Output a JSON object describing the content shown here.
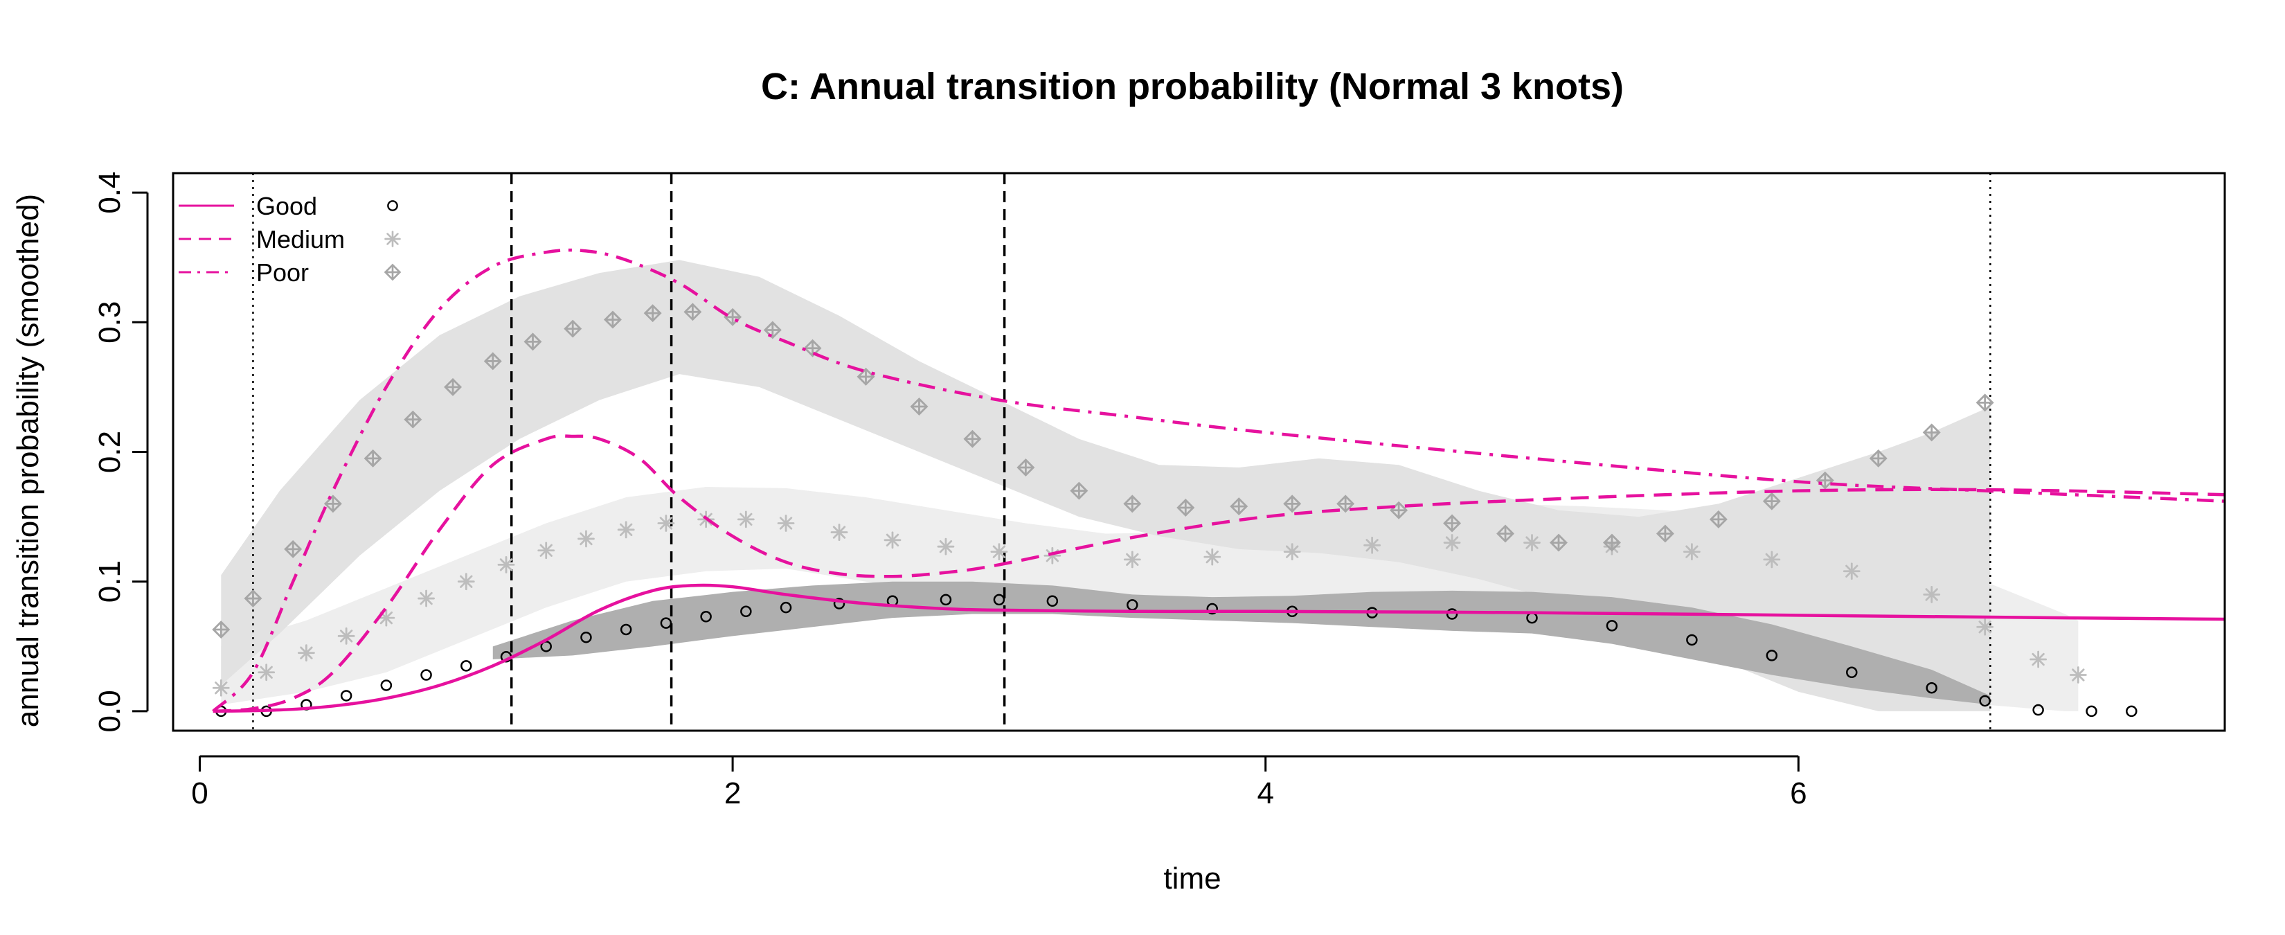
{
  "chart_data": {
    "type": "line",
    "title": "C: Annual transition probability (Normal 3 knots)",
    "xlabel": "time",
    "ylabel": "annual transition probability (smoothed)",
    "xlim": [
      -0.1,
      7.6
    ],
    "ylim": [
      -0.015,
      0.415
    ],
    "xticks": [
      0,
      2,
      4,
      6
    ],
    "yticks": [
      0.0,
      0.1,
      0.2,
      0.3,
      0.4
    ],
    "xtick_labels": [
      "0",
      "2",
      "4",
      "6"
    ],
    "ytick_labels": [
      "0.0",
      "0.1",
      "0.2",
      "0.3",
      "0.4"
    ],
    "grid": false,
    "legend_position": "top-left",
    "colors": {
      "model_line": "#E6119E",
      "good_points": "#000000",
      "medium_points": "#BDBDBD",
      "poor_points": "#A6A6A6",
      "good_band": "#AFAFAF",
      "medium_band": "#EEEEEE",
      "poor_band": "#E2E2E2"
    },
    "reference_lines": {
      "dotted": [
        0.2,
        6.72
      ],
      "dashed": [
        1.17,
        1.77,
        3.02
      ]
    },
    "series": [
      {
        "name": "Good",
        "kind": "model",
        "linestyle": "solid",
        "x": [
          0.05,
          0.3,
          0.5,
          0.7,
          0.9,
          1.1,
          1.3,
          1.5,
          1.7,
          1.85,
          2.0,
          2.2,
          2.5,
          2.8,
          3.0,
          3.5,
          4.0,
          5.0,
          6.0,
          7.0,
          7.6
        ],
        "y": [
          0.0,
          0.001,
          0.004,
          0.01,
          0.02,
          0.035,
          0.055,
          0.078,
          0.093,
          0.097,
          0.096,
          0.09,
          0.083,
          0.079,
          0.078,
          0.077,
          0.077,
          0.076,
          0.074,
          0.072,
          0.071
        ]
      },
      {
        "name": "Medium",
        "kind": "model",
        "linestyle": "dashed",
        "x": [
          0.05,
          0.2,
          0.35,
          0.5,
          0.7,
          0.9,
          1.1,
          1.3,
          1.4,
          1.5,
          1.65,
          1.8,
          2.0,
          2.2,
          2.4,
          2.6,
          2.8,
          3.0,
          3.5,
          4.0,
          4.5,
          5.0,
          5.5,
          6.0,
          6.5,
          7.0,
          7.6
        ],
        "y": [
          0.0,
          0.002,
          0.01,
          0.03,
          0.08,
          0.14,
          0.19,
          0.21,
          0.212,
          0.21,
          0.195,
          0.165,
          0.135,
          0.115,
          0.106,
          0.104,
          0.107,
          0.113,
          0.134,
          0.15,
          0.158,
          0.163,
          0.167,
          0.17,
          0.171,
          0.17,
          0.167
        ]
      },
      {
        "name": "Poor",
        "kind": "model",
        "linestyle": "dashdot",
        "x": [
          0.05,
          0.2,
          0.35,
          0.5,
          0.7,
          0.9,
          1.1,
          1.3,
          1.45,
          1.6,
          1.8,
          2.0,
          2.2,
          2.5,
          3.0,
          3.5,
          4.0,
          5.0,
          6.0,
          6.7,
          7.6
        ],
        "y": [
          0.0,
          0.03,
          0.1,
          0.17,
          0.25,
          0.31,
          0.343,
          0.354,
          0.355,
          0.348,
          0.33,
          0.303,
          0.285,
          0.262,
          0.24,
          0.227,
          0.215,
          0.195,
          0.177,
          0.17,
          0.162
        ]
      }
    ],
    "observed": [
      {
        "name": "Good",
        "marker": "circle",
        "x": [
          0.08,
          0.25,
          0.4,
          0.55,
          0.7,
          0.85,
          1.0,
          1.15,
          1.3,
          1.45,
          1.6,
          1.75,
          1.9,
          2.05,
          2.2,
          2.4,
          2.6,
          2.8,
          3.0,
          3.2,
          3.5,
          3.8,
          4.1,
          4.4,
          4.7,
          5.0,
          5.3,
          5.6,
          5.9,
          6.2,
          6.5,
          6.7,
          6.9,
          7.1,
          7.25
        ],
        "y": [
          0.0,
          0.0,
          0.005,
          0.012,
          0.02,
          0.028,
          0.035,
          0.042,
          0.05,
          0.057,
          0.063,
          0.068,
          0.073,
          0.077,
          0.08,
          0.083,
          0.085,
          0.086,
          0.086,
          0.085,
          0.082,
          0.079,
          0.077,
          0.076,
          0.075,
          0.072,
          0.066,
          0.055,
          0.043,
          0.03,
          0.018,
          0.008,
          0.001,
          0.0,
          0.0
        ]
      },
      {
        "name": "Medium",
        "marker": "asterisk",
        "x": [
          0.08,
          0.25,
          0.4,
          0.55,
          0.7,
          0.85,
          1.0,
          1.15,
          1.3,
          1.45,
          1.6,
          1.75,
          1.9,
          2.05,
          2.2,
          2.4,
          2.6,
          2.8,
          3.0,
          3.2,
          3.5,
          3.8,
          4.1,
          4.4,
          4.7,
          5.0,
          5.3,
          5.6,
          5.9,
          6.2,
          6.5,
          6.7,
          6.9,
          7.05
        ],
        "y": [
          0.018,
          0.03,
          0.045,
          0.058,
          0.072,
          0.087,
          0.1,
          0.113,
          0.124,
          0.133,
          0.14,
          0.145,
          0.148,
          0.148,
          0.145,
          0.138,
          0.132,
          0.127,
          0.123,
          0.12,
          0.117,
          0.119,
          0.123,
          0.128,
          0.13,
          0.13,
          0.127,
          0.123,
          0.117,
          0.108,
          0.09,
          0.065,
          0.04,
          0.028
        ]
      },
      {
        "name": "Poor",
        "marker": "diamond-plus",
        "x": [
          0.08,
          0.2,
          0.35,
          0.5,
          0.65,
          0.8,
          0.95,
          1.1,
          1.25,
          1.4,
          1.55,
          1.7,
          1.85,
          2.0,
          2.15,
          2.3,
          2.5,
          2.7,
          2.9,
          3.1,
          3.3,
          3.5,
          3.7,
          3.9,
          4.1,
          4.3,
          4.5,
          4.7,
          4.9,
          5.1,
          5.3,
          5.5,
          5.7,
          5.9,
          6.1,
          6.3,
          6.5,
          6.7
        ],
        "y": [
          0.063,
          0.087,
          0.125,
          0.16,
          0.195,
          0.225,
          0.25,
          0.27,
          0.285,
          0.295,
          0.302,
          0.307,
          0.308,
          0.304,
          0.294,
          0.28,
          0.258,
          0.235,
          0.21,
          0.188,
          0.17,
          0.16,
          0.157,
          0.158,
          0.16,
          0.16,
          0.155,
          0.145,
          0.137,
          0.13,
          0.13,
          0.137,
          0.148,
          0.162,
          0.178,
          0.195,
          0.215,
          0.238
        ]
      }
    ],
    "bands": [
      {
        "name": "Good",
        "x": [
          1.1,
          1.4,
          1.7,
          2.0,
          2.3,
          2.6,
          2.9,
          3.2,
          3.5,
          3.8,
          4.1,
          4.4,
          4.7,
          5.0,
          5.3,
          5.6,
          5.9,
          6.2,
          6.5,
          6.72
        ],
        "upper": [
          0.05,
          0.07,
          0.085,
          0.092,
          0.097,
          0.1,
          0.1,
          0.097,
          0.09,
          0.088,
          0.089,
          0.092,
          0.093,
          0.092,
          0.088,
          0.08,
          0.067,
          0.05,
          0.032,
          0.012
        ],
        "lower": [
          0.04,
          0.043,
          0.05,
          0.058,
          0.065,
          0.072,
          0.075,
          0.075,
          0.072,
          0.07,
          0.068,
          0.065,
          0.062,
          0.06,
          0.052,
          0.04,
          0.028,
          0.018,
          0.01,
          0.005
        ]
      },
      {
        "name": "Medium",
        "x": [
          0.08,
          0.4,
          0.7,
          1.0,
          1.3,
          1.6,
          1.9,
          2.2,
          2.5,
          2.8,
          3.1,
          3.4,
          3.7,
          4.0,
          4.3,
          4.6,
          4.9,
          5.2,
          5.5,
          5.8,
          6.1,
          6.4,
          6.7,
          7.0,
          7.05
        ],
        "upper": [
          0.05,
          0.07,
          0.095,
          0.12,
          0.145,
          0.165,
          0.173,
          0.172,
          0.165,
          0.155,
          0.145,
          0.137,
          0.138,
          0.145,
          0.155,
          0.16,
          0.16,
          0.158,
          0.155,
          0.15,
          0.14,
          0.125,
          0.1,
          0.075,
          0.07
        ],
        "lower": [
          0.005,
          0.015,
          0.03,
          0.055,
          0.08,
          0.1,
          0.108,
          0.11,
          0.1,
          0.092,
          0.088,
          0.085,
          0.085,
          0.087,
          0.09,
          0.092,
          0.09,
          0.085,
          0.07,
          0.05,
          0.03,
          0.015,
          0.005,
          0.0,
          0.0
        ]
      },
      {
        "name": "Poor",
        "x": [
          0.08,
          0.3,
          0.6,
          0.9,
          1.2,
          1.5,
          1.8,
          2.1,
          2.4,
          2.7,
          3.0,
          3.3,
          3.6,
          3.9,
          4.2,
          4.5,
          4.8,
          5.1,
          5.4,
          5.7,
          6.0,
          6.3,
          6.5,
          6.72
        ],
        "upper": [
          0.105,
          0.17,
          0.24,
          0.29,
          0.32,
          0.338,
          0.348,
          0.335,
          0.305,
          0.27,
          0.24,
          0.21,
          0.19,
          0.188,
          0.195,
          0.19,
          0.17,
          0.155,
          0.15,
          0.16,
          0.18,
          0.2,
          0.215,
          0.235
        ],
        "lower": [
          0.02,
          0.06,
          0.12,
          0.17,
          0.21,
          0.24,
          0.26,
          0.25,
          0.225,
          0.2,
          0.175,
          0.15,
          0.135,
          0.125,
          0.122,
          0.115,
          0.102,
          0.085,
          0.065,
          0.04,
          0.015,
          0.0,
          0.0,
          0.0
        ]
      }
    ]
  }
}
